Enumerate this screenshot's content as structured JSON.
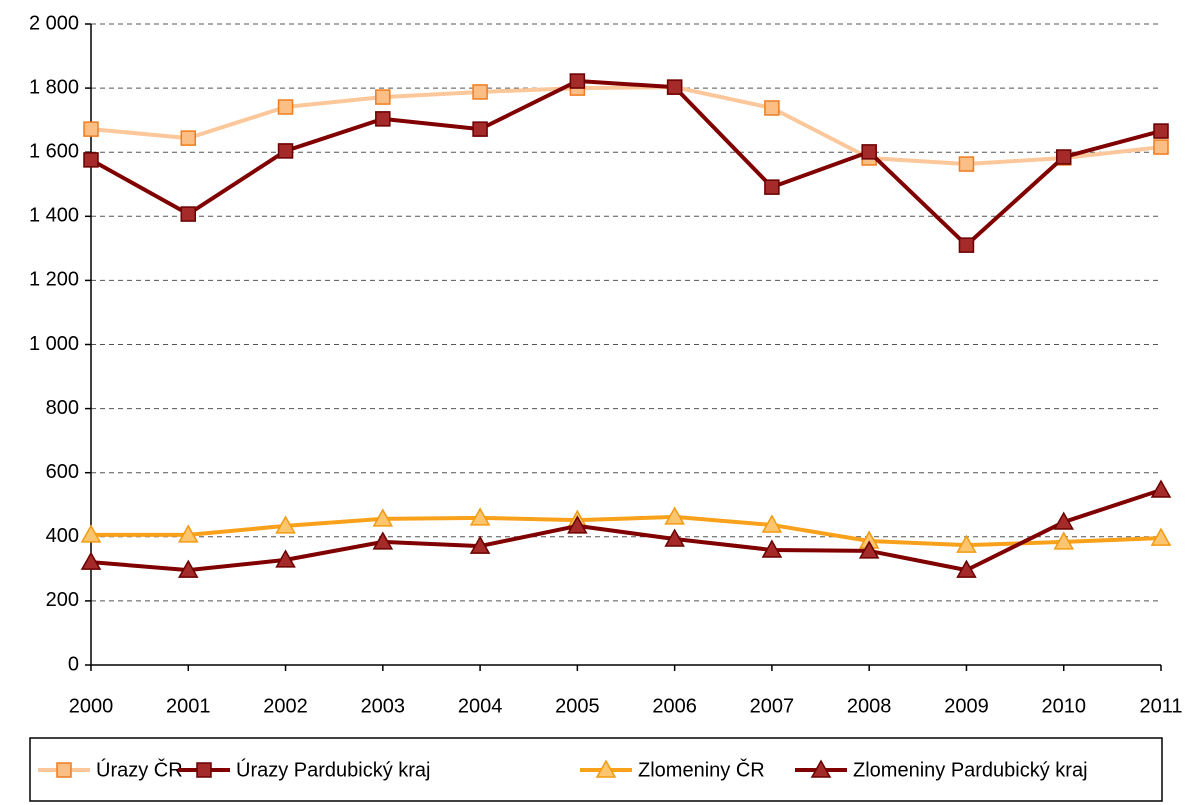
{
  "chart_data": {
    "type": "line",
    "x": [
      2000,
      2001,
      2002,
      2003,
      2004,
      2005,
      2006,
      2007,
      2008,
      2009,
      2010,
      2011
    ],
    "xlim": [
      2000,
      2011
    ],
    "xticks": [
      2000,
      2001,
      2002,
      2003,
      2004,
      2005,
      2006,
      2007,
      2008,
      2009,
      2010,
      2011
    ],
    "ylim": [
      0,
      2000
    ],
    "yticks": [
      0,
      200,
      400,
      600,
      800,
      {
        "value": 1000,
        "label": "1 000"
      },
      {
        "value": 1200,
        "label": "1 200"
      },
      {
        "value": 1400,
        "label": "1 400"
      },
      {
        "value": 1600,
        "label": "1 600"
      },
      {
        "value": 1800,
        "label": "1 800"
      },
      {
        "value": 2000,
        "label": "2 000"
      }
    ],
    "grid": true,
    "legend": "bottom",
    "series": [
      {
        "name": "Úrazy ČR",
        "color": "#fcc89b",
        "marker": "square",
        "marker_color": "#fbbf86",
        "marker_edge": "#f07c1e",
        "values": [
          1672,
          1644,
          1741,
          1772,
          1788,
          1800,
          1803,
          1738,
          1582,
          1563,
          1582,
          1616
        ]
      },
      {
        "name": "Úrazy Pardubický kraj",
        "color": "#800000",
        "marker": "square",
        "marker_color": "#a52a2a",
        "marker_edge": "#6a0000",
        "values": [
          1576,
          1407,
          1604,
          1704,
          1672,
          1822,
          1803,
          1491,
          1601,
          1310,
          1585,
          1666
        ]
      },
      {
        "name": "Zlomeniny ČR",
        "color": "#f9a11b",
        "marker": "triangle",
        "marker_color": "#fcc56e",
        "marker_edge": "#f29a10",
        "values": [
          406,
          406,
          434,
          456,
          459,
          452,
          462,
          437,
          387,
          374,
          384,
          396
        ]
      },
      {
        "name": "Zlomeniny Pardubický kraj",
        "color": "#800000",
        "marker": "triangle",
        "marker_color": "#a52a2a",
        "marker_edge": "#6a0000",
        "values": [
          321,
          296,
          328,
          384,
          371,
          434,
          393,
          359,
          356,
          296,
          446,
          546
        ]
      }
    ]
  }
}
